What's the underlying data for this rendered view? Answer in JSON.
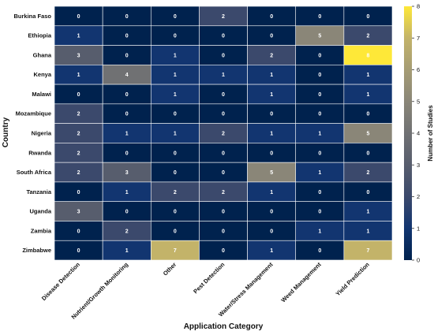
{
  "chart_data": {
    "type": "heatmap",
    "xlabel": "Application Category",
    "ylabel": "Country",
    "colorbar_label": "Number of Studies",
    "colorbar_range": [
      0,
      8
    ],
    "colorbar_ticks": [
      "0",
      "1",
      "2",
      "3",
      "4",
      "5",
      "6",
      "7",
      "8"
    ],
    "colormap": "cividis",
    "colors": {
      "low": "#00224e",
      "mid": "#7c7b78",
      "high": "#fee838"
    },
    "columns": [
      "Disease Detection",
      "Nutrient/Growth Monitoring",
      "Other",
      "Pest Detection",
      "Water/Stress Management",
      "Weed Management",
      "Yield Prediction"
    ],
    "rows": [
      "Burkina Faso",
      "Ethiopia",
      "Ghana",
      "Kenya",
      "Malawi",
      "Mozambique",
      "Nigeria",
      "Rwanda",
      "South Africa",
      "Tanzania",
      "Uganda",
      "Zambia",
      "Zimbabwe"
    ],
    "values": [
      [
        0,
        0,
        0,
        2,
        0,
        0,
        0
      ],
      [
        1,
        0,
        0,
        0,
        0,
        5,
        2
      ],
      [
        3,
        0,
        1,
        0,
        2,
        0,
        8
      ],
      [
        1,
        4,
        1,
        1,
        1,
        0,
        1
      ],
      [
        0,
        0,
        1,
        0,
        1,
        0,
        1
      ],
      [
        2,
        0,
        0,
        0,
        0,
        0,
        0
      ],
      [
        2,
        1,
        1,
        2,
        1,
        1,
        5
      ],
      [
        2,
        0,
        0,
        0,
        0,
        0,
        0
      ],
      [
        2,
        3,
        0,
        0,
        5,
        1,
        2
      ],
      [
        0,
        1,
        2,
        2,
        1,
        0,
        0
      ],
      [
        3,
        0,
        0,
        0,
        0,
        0,
        1
      ],
      [
        0,
        2,
        0,
        0,
        0,
        1,
        1
      ],
      [
        0,
        1,
        7,
        0,
        1,
        0,
        7
      ]
    ]
  }
}
